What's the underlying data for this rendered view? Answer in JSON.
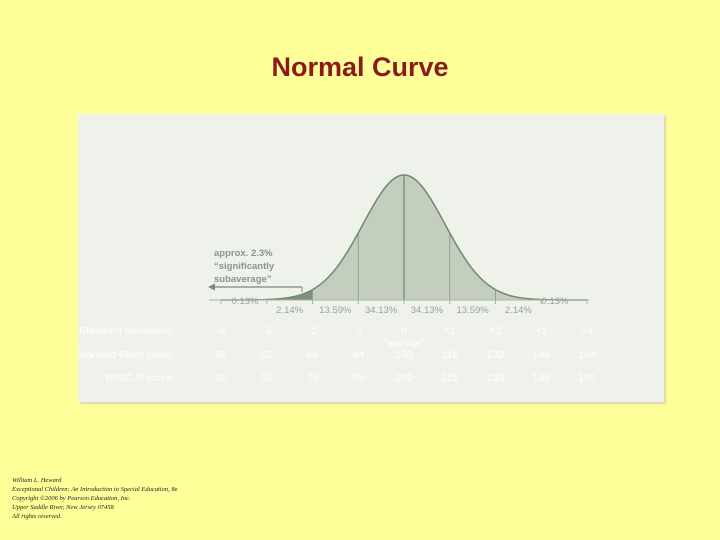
{
  "title": "Normal Curve",
  "chart_data": {
    "type": "area",
    "title": "",
    "xlabel": "",
    "ylabel": "",
    "xlim": [
      -4,
      4
    ],
    "x_ticks": [
      "-4",
      "-3",
      "-2",
      "-1",
      "0",
      "+1",
      "+2",
      "+3",
      "+4"
    ],
    "x_values": [
      -4,
      -3,
      -2,
      -1,
      0,
      1,
      2,
      3,
      4
    ],
    "average_label": "\"average\"",
    "segments": [
      {
        "from": -4,
        "to": -3,
        "percent": "0.13%"
      },
      {
        "from": -3,
        "to": -2,
        "percent": "2.14%"
      },
      {
        "from": -2,
        "to": -1,
        "percent": "13.59%"
      },
      {
        "from": -1,
        "to": 0,
        "percent": "34.13%"
      },
      {
        "from": 0,
        "to": 1,
        "percent": "34.13%"
      },
      {
        "from": 1,
        "to": 2,
        "percent": "13.59%"
      },
      {
        "from": 2,
        "to": 3,
        "percent": "2.14%"
      },
      {
        "from": 3,
        "to": 4,
        "percent": "0.13%"
      }
    ],
    "shaded_region": {
      "from": -4,
      "to": -2
    },
    "annotation_lines": [
      "approx. 2.3%",
      "“significantly",
      "subaverage”"
    ],
    "rows": [
      {
        "label": "Standard deviations",
        "values": [
          "-4",
          "-3",
          "-2",
          "-1",
          "0",
          "+1",
          "+2",
          "+3",
          "+4"
        ]
      },
      {
        "label": "Stanford-Binet score",
        "values": [
          "36",
          "52",
          "68",
          "84",
          "100",
          "116",
          "132",
          "148",
          "164"
        ]
      },
      {
        "label": "WISC-R score",
        "values": [
          "40",
          "55",
          "70",
          "85",
          "100",
          "115",
          "130",
          "145",
          "160"
        ]
      }
    ],
    "colors": {
      "curve_fill": "#c3cebe",
      "shaded_fill": "#7f917c",
      "curve_line": "#6f8a6c",
      "text": "#9aa39a",
      "row_text": "#ffffff"
    }
  },
  "credit": [
    "William L. Heward",
    "Exceptional Children: An Introduction to Special Education, 8e",
    "Copyright ©2006 by Pearson Education, Inc.",
    "Upper Saddle River, New Jersey 07458",
    "All rights reserved."
  ]
}
